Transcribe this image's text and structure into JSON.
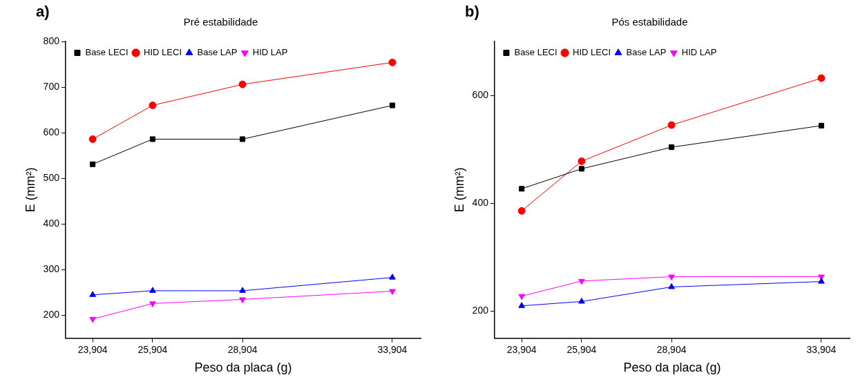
{
  "chart_data": [
    {
      "type": "line",
      "title": "Pré estabilidade",
      "annotations": [
        "a)"
      ],
      "xlabel": "Peso da placa (g)",
      "ylabel": "E (mm²)",
      "x": [
        23904,
        25904,
        28904,
        33904
      ],
      "series": [
        {
          "name": "Base LECI",
          "color": "#000000",
          "marker": "square",
          "values": [
            531,
            586,
            586,
            660
          ]
        },
        {
          "name": "HID LECI",
          "color": "#ff0000",
          "marker": "circle",
          "values": [
            586,
            660,
            706,
            754
          ]
        },
        {
          "name": "Base LAP",
          "color": "#0000ff",
          "marker": "triangle",
          "values": [
            245,
            254,
            254,
            283
          ]
        },
        {
          "name": "HID LAP",
          "color": "#ff00ff",
          "marker": "triangle-down",
          "values": [
            192,
            226,
            235,
            253
          ]
        }
      ],
      "xlim": [
        23000,
        34850
      ],
      "xticks": [
        {
          "value": 23904,
          "label": "23,904"
        },
        {
          "value": 25904,
          "label": "25,904"
        },
        {
          "value": 28904,
          "label": "28,904"
        },
        {
          "value": 33904,
          "label": "33,904"
        }
      ],
      "ylim": [
        150,
        800
      ],
      "yticks": [
        200,
        300,
        400,
        500,
        600,
        700,
        800
      ],
      "grid": false,
      "legend": "top left",
      "line_style": "solid"
    },
    {
      "type": "line",
      "title": "Pós estabilidade",
      "annotations": [
        "b)"
      ],
      "xlabel": "Peso da placa (g)",
      "ylabel": "E (mm²)",
      "x": [
        23904,
        25904,
        28904,
        33904
      ],
      "series": [
        {
          "name": "Base LECI",
          "color": "#000000",
          "marker": "square",
          "values": [
            427,
            464,
            504,
            544
          ]
        },
        {
          "name": "HID LECI",
          "color": "#ff0000",
          "marker": "circle",
          "values": [
            386,
            478,
            545,
            632
          ]
        },
        {
          "name": "Base LAP",
          "color": "#0000ff",
          "marker": "triangle",
          "values": [
            210,
            218,
            245,
            255
          ]
        },
        {
          "name": "HID LAP",
          "color": "#ff00ff",
          "marker": "triangle-down",
          "values": [
            228,
            256,
            264,
            264
          ]
        }
      ],
      "xlim": [
        23000,
        34850
      ],
      "xticks": [
        {
          "value": 23904,
          "label": "23,904"
        },
        {
          "value": 25904,
          "label": "25,904"
        },
        {
          "value": 28904,
          "label": "28,904"
        },
        {
          "value": 33904,
          "label": "33,904"
        }
      ],
      "ylim": [
        150,
        700
      ],
      "yticks": [
        200,
        400,
        600
      ],
      "grid": false,
      "legend": "top left",
      "line_style": "solid"
    }
  ]
}
